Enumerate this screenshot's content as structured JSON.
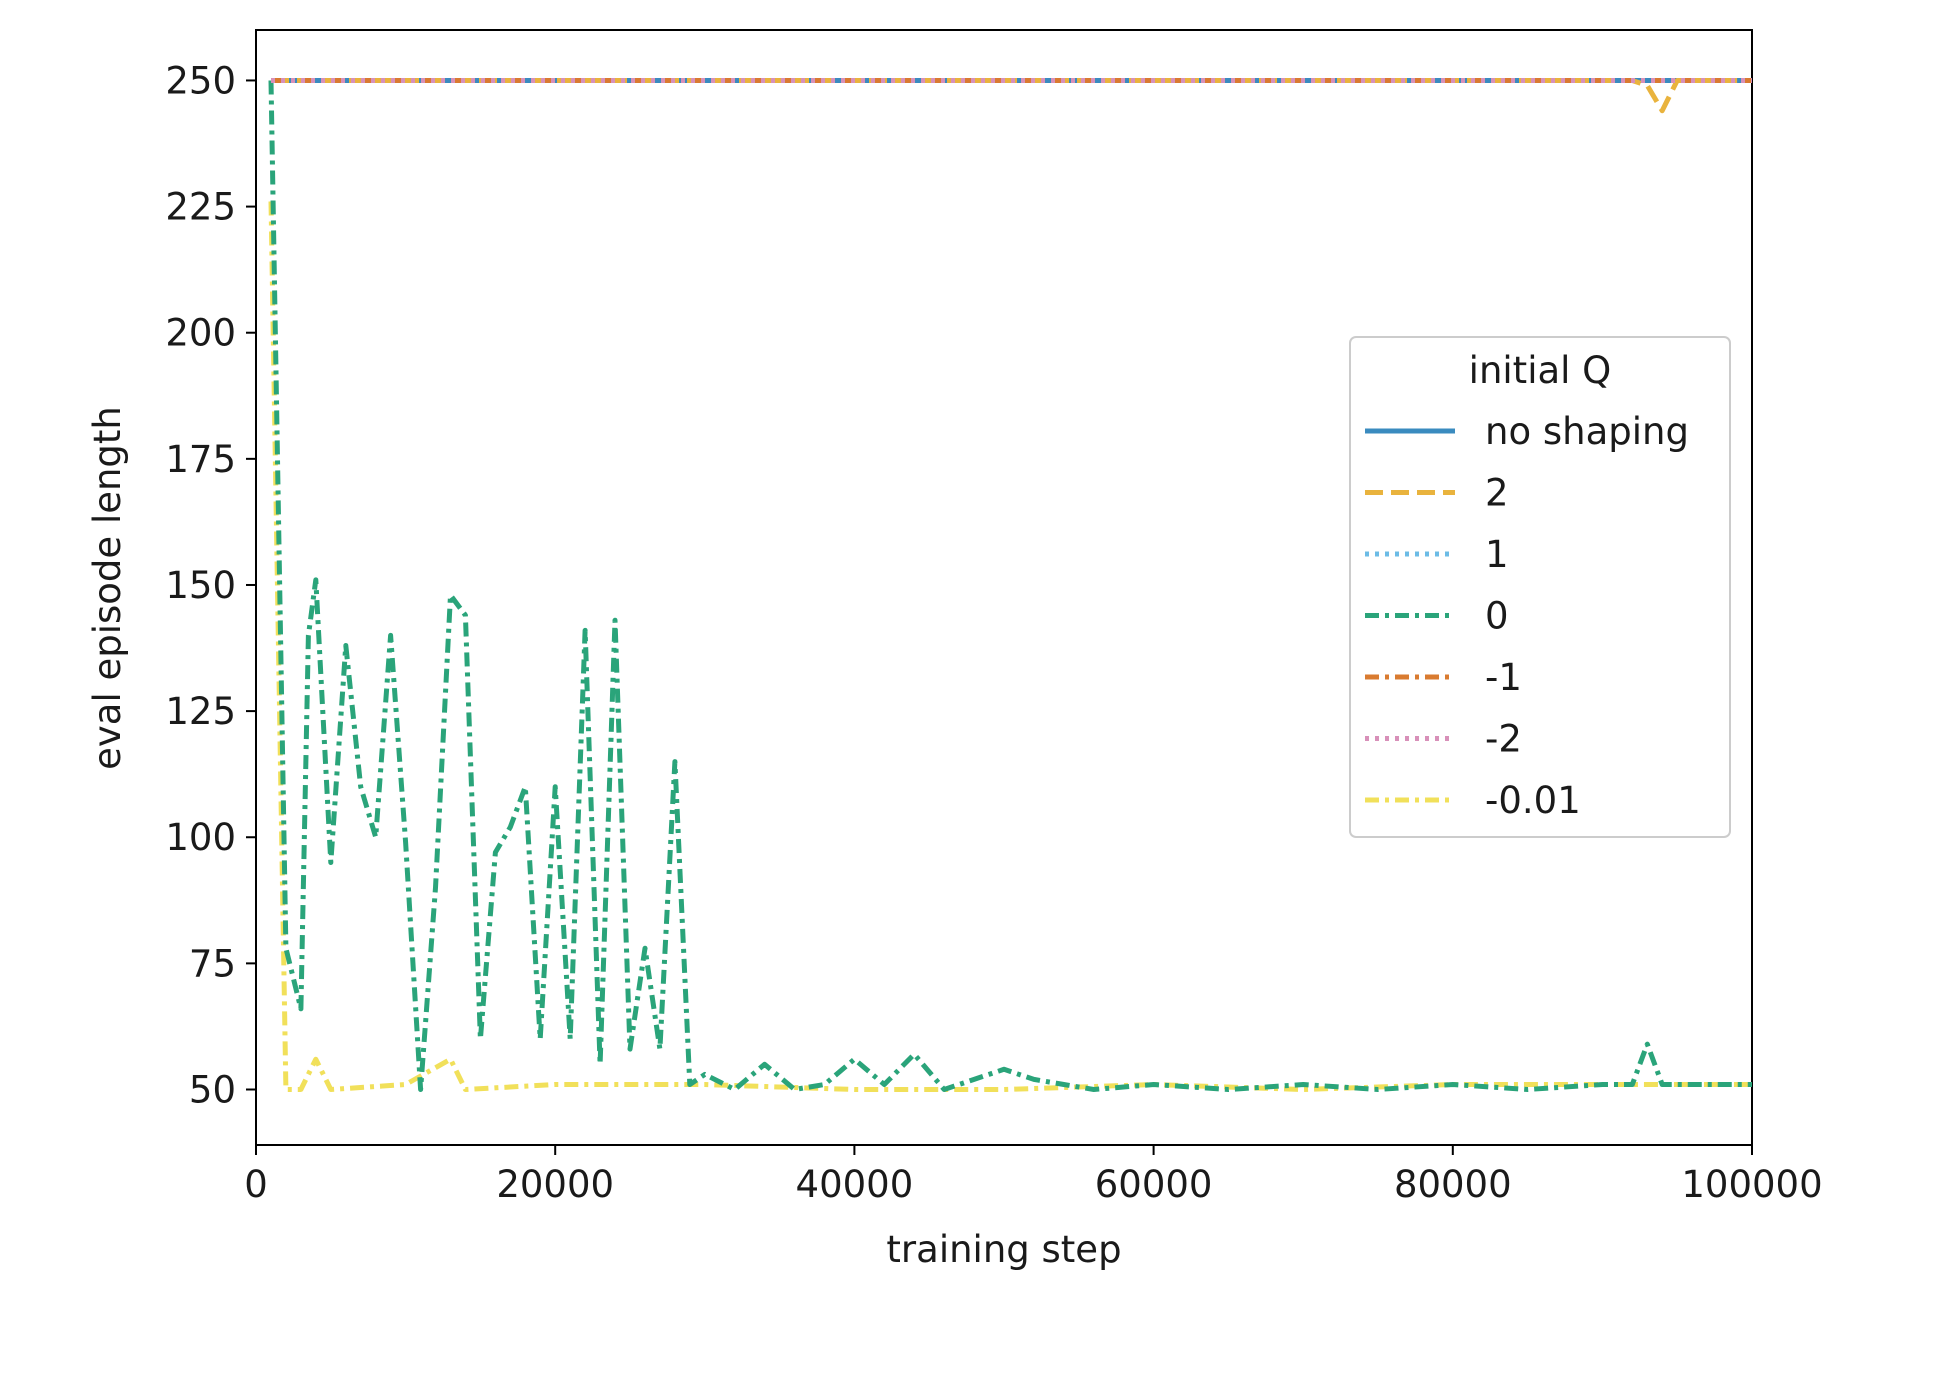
{
  "chart_data": {
    "type": "line",
    "title": "",
    "xlabel": "training step",
    "ylabel": "eval episode length",
    "xlim": [
      0,
      100000
    ],
    "ylim": [
      39,
      260
    ],
    "xticks": [
      0,
      20000,
      40000,
      60000,
      80000,
      100000
    ],
    "xtick_labels": [
      "0",
      "20000",
      "40000",
      "60000",
      "80000",
      "100000"
    ],
    "yticks": [
      50,
      75,
      100,
      125,
      150,
      175,
      200,
      225,
      250
    ],
    "ytick_labels": [
      "50",
      "75",
      "100",
      "125",
      "150",
      "175",
      "200",
      "225",
      "250"
    ],
    "grid": false,
    "legend": {
      "title": "initial Q",
      "location": "center-right"
    },
    "series": [
      {
        "name": "no shaping",
        "color": "#3a8bbf",
        "style": "solid",
        "x": [
          1000,
          100000
        ],
        "values": [
          250,
          250
        ]
      },
      {
        "name": "2",
        "color": "#e9b33d",
        "style": "dashed",
        "x": [
          1000,
          92000,
          93000,
          94000,
          95000,
          100000
        ],
        "values": [
          250,
          250,
          249,
          244,
          250,
          250
        ]
      },
      {
        "name": "1",
        "color": "#6cbce6",
        "style": "dotted",
        "x": [
          1000,
          100000
        ],
        "values": [
          250,
          250
        ]
      },
      {
        "name": "0",
        "color": "#2aa47a",
        "style": "dashdot",
        "x": [
          1000,
          2000,
          3000,
          3500,
          4000,
          5000,
          6000,
          7000,
          8000,
          9000,
          10000,
          11000,
          12000,
          13000,
          14000,
          15000,
          16000,
          17000,
          18000,
          19000,
          20000,
          21000,
          22000,
          23000,
          24000,
          25000,
          26000,
          27000,
          28000,
          29000,
          30000,
          32000,
          34000,
          36000,
          38000,
          40000,
          42000,
          44000,
          46000,
          48000,
          50000,
          52000,
          54000,
          56000,
          60000,
          65000,
          70000,
          75000,
          80000,
          85000,
          90000,
          92000,
          93000,
          94000,
          96000,
          100000
        ],
        "values": [
          250,
          78,
          66,
          140,
          151,
          95,
          138,
          110,
          100,
          140,
          99,
          50,
          90,
          148,
          144,
          60,
          97,
          102,
          110,
          60,
          110,
          60,
          141,
          55,
          143,
          58,
          78,
          58,
          115,
          51,
          53,
          50,
          55,
          50,
          51,
          56,
          51,
          57,
          50,
          52,
          54,
          52,
          51,
          50,
          51,
          50,
          51,
          50,
          51,
          50,
          51,
          51,
          59,
          51,
          51,
          51
        ]
      },
      {
        "name": "-1",
        "color": "#d97b30",
        "style": "dashdot",
        "x": [
          1000,
          100000
        ],
        "values": [
          250,
          250
        ]
      },
      {
        "name": "-2",
        "color": "#d890b9",
        "style": "dotted",
        "x": [
          1000,
          100000
        ],
        "values": [
          250,
          250
        ]
      },
      {
        "name": "-0.01",
        "color": "#f1e05a",
        "style": "dashdot",
        "x": [
          1000,
          2000,
          3000,
          4000,
          5000,
          10000,
          13000,
          14000,
          20000,
          30000,
          40000,
          50000,
          60000,
          70000,
          80000,
          90000,
          100000
        ],
        "values": [
          226,
          50,
          50,
          56,
          50,
          51,
          56,
          50,
          51,
          51,
          50,
          50,
          51,
          50,
          51,
          51,
          51
        ]
      }
    ]
  }
}
